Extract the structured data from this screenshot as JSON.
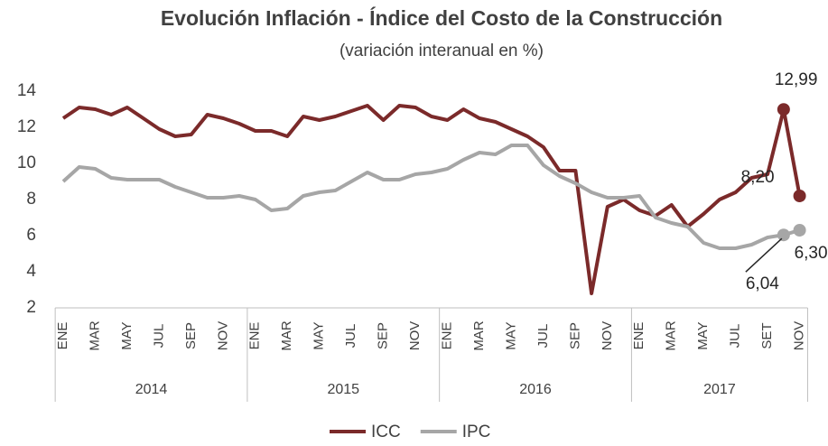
{
  "chart_data": {
    "type": "line",
    "title": "Evolución Inflación - Índice del Costo de la Construcción",
    "subtitle": "(variación interanual en %)",
    "categories": [
      "ENE",
      null,
      "MAR",
      null,
      "MAY",
      null,
      "JUL",
      null,
      "SEP",
      null,
      "NOV",
      null,
      "ENE",
      null,
      "MAR",
      null,
      "MAY",
      null,
      "JUL",
      null,
      "SEP",
      null,
      "NOV",
      null,
      "ENE",
      null,
      "MAR",
      null,
      "MAY",
      null,
      "JUL",
      null,
      "SEP",
      null,
      "NOV",
      null,
      "ENE",
      null,
      "MAR",
      null,
      "MAY",
      null,
      "JUL",
      null,
      "SET",
      null,
      "NOV"
    ],
    "groups": [
      {
        "label": "2014",
        "count": 12
      },
      {
        "label": "2015",
        "count": 12
      },
      {
        "label": "2016",
        "count": 12
      },
      {
        "label": "2017",
        "count": 11
      }
    ],
    "series": [
      {
        "name": "ICC",
        "color": "#7b2a2a",
        "values": [
          12.5,
          13.1,
          13.0,
          12.7,
          13.1,
          12.5,
          11.9,
          11.5,
          11.6,
          12.7,
          12.5,
          12.2,
          11.8,
          11.8,
          11.5,
          12.6,
          12.4,
          12.6,
          12.9,
          13.2,
          12.4,
          13.2,
          13.1,
          12.6,
          12.4,
          13.0,
          12.5,
          12.3,
          11.9,
          11.5,
          10.9,
          9.6,
          9.6,
          2.8,
          7.6,
          8.0,
          7.4,
          7.1,
          7.7,
          6.5,
          7.2,
          8.0,
          8.4,
          9.2,
          9.4,
          12.99,
          8.2
        ],
        "value_labels": [
          null,
          null,
          null,
          null,
          null,
          null,
          null,
          null,
          null,
          null,
          null,
          null,
          null,
          null,
          null,
          null,
          null,
          null,
          null,
          null,
          null,
          null,
          null,
          null,
          null,
          null,
          null,
          null,
          null,
          null,
          null,
          null,
          null,
          null,
          null,
          null,
          null,
          null,
          null,
          null,
          null,
          null,
          null,
          null,
          null,
          "12,99",
          "8,20"
        ]
      },
      {
        "name": "IPC",
        "color": "#a6a6a6",
        "values": [
          9.0,
          9.8,
          9.7,
          9.2,
          9.1,
          9.1,
          9.1,
          8.7,
          8.4,
          8.1,
          8.1,
          8.2,
          8.0,
          7.4,
          7.5,
          8.2,
          8.4,
          8.5,
          9.0,
          9.5,
          9.1,
          9.1,
          9.4,
          9.5,
          9.7,
          10.2,
          10.6,
          10.5,
          11.0,
          11.0,
          9.9,
          9.3,
          8.9,
          8.4,
          8.1,
          8.1,
          8.2,
          7.0,
          6.7,
          6.5,
          5.6,
          5.3,
          5.3,
          5.5,
          5.9,
          6.04,
          6.3
        ],
        "value_labels": [
          null,
          null,
          null,
          null,
          null,
          null,
          null,
          null,
          null,
          null,
          null,
          null,
          null,
          null,
          null,
          null,
          null,
          null,
          null,
          null,
          null,
          null,
          null,
          null,
          null,
          null,
          null,
          null,
          null,
          null,
          null,
          null,
          null,
          null,
          null,
          null,
          null,
          null,
          null,
          null,
          null,
          null,
          null,
          null,
          null,
          "6,04",
          "6,30"
        ]
      }
    ],
    "ylim": [
      2,
      14
    ],
    "yticks": [
      2,
      4,
      6,
      8,
      10,
      12,
      14
    ],
    "grid": false,
    "legend": "bottom"
  }
}
